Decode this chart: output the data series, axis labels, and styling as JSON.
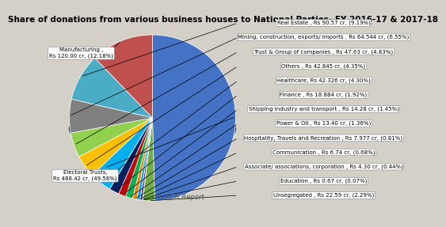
{
  "title": "Share of donations from various business houses to National Parties- FY 2016-17 & 2017-18",
  "subtitle": "-An ADR Report",
  "slices": [
    {
      "label": "Electoral Trusts,\nRs 488.42 cr, (49.58%)",
      "value": 49.58,
      "color": "#4472C4",
      "dark_color": "#2F5597"
    },
    {
      "label": "Unsegregated , Rs 22.59 cr, (2.29%)",
      "value": 2.29,
      "color": "#70AD47",
      "dark_color": "#507E33"
    },
    {
      "label": "Education , Rs 0.67 cr, (0.07%)",
      "value": 0.07,
      "color": "#FF0000",
      "dark_color": "#AA0000"
    },
    {
      "label": "Associate/ associations, corporation , Rs 4.30 cr, (0.44%)",
      "value": 0.44,
      "color": "#7030A0",
      "dark_color": "#4B2070"
    },
    {
      "label": "Communication , Rs 6.74 cr, (0.68%)",
      "value": 0.68,
      "color": "#00B0F0",
      "dark_color": "#007BA8"
    },
    {
      "label": "Hospitality, Travels and Recreation , Rs 7.977 cr, (0.81%)",
      "value": 0.81,
      "color": "#FF7F00",
      "dark_color": "#B85900"
    },
    {
      "label": "Power & Oil , Rs 13.40 cr, (1.36%)",
      "value": 1.36,
      "color": "#00B050",
      "dark_color": "#007A38"
    },
    {
      "label": "Shipping Industry and transport , Rs 14.28 cr, (1.45%)",
      "value": 1.45,
      "color": "#C00000",
      "dark_color": "#850000"
    },
    {
      "label": "Finance , Rs 18.884 cr, (1.92%)",
      "value": 1.92,
      "color": "#002060",
      "dark_color": "#001040"
    },
    {
      "label": "Healthcare, Rs 42.326 cr, (4.30%)",
      "value": 4.3,
      "color": "#00B0F0",
      "dark_color": "#007BA8"
    },
    {
      "label": "Others , Rs 42.845 cr, (4.35%)",
      "value": 4.35,
      "color": "#FFC000",
      "dark_color": "#B88A00"
    },
    {
      "label": "Trust & Group of companies , Rs 47.63 cr, (4.83%)",
      "value": 4.83,
      "color": "#92D050",
      "dark_color": "#669138"
    },
    {
      "label": "Mining, construction, exports/ imports , Rs 64.544 cr, (6.55%)",
      "value": 6.55,
      "color": "#808080",
      "dark_color": "#505050"
    },
    {
      "label": "Real Estate , Rs 90.57 cr, (9.19%)",
      "value": 9.19,
      "color": "#4BACC6",
      "dark_color": "#2E7A8C"
    },
    {
      "label": "Manufacturing ,\nRs 120.00 cr, (12.18%)",
      "value": 12.18,
      "color": "#C0504D",
      "dark_color": "#8A3A38"
    }
  ],
  "right_labels": [
    "Real Estate , Rs 90.57 cr, (9.19%)",
    "Mining, construction, exports/ imports , Rs 64.544 cr, (6.55%)",
    "Trust & Group of companies , Rs 47.63 cr, (4.83%)",
    "Others , Rs 42.845 cr, (4.35%)",
    "Healthcare, Rs 42.326 cr, (4.30%)",
    "Finance , Rs 18.884 cr, (1.92%)",
    "Shipping Industry and transport , Rs 14.28 cr, (1.45%)",
    "Power & Oil , Rs 13.40 cr, (1.36%)",
    "Hospitality, Travels and Recreation , Rs 7.977 cr, (0.81%)",
    "Communication , Rs 6.74 cr, (0.68%)",
    "Associate/ associations, corporation , Rs 4.30 cr, (0.44%)",
    "Education , Rs 0.67 cr, (0.07%)",
    "Unsegregated , Rs 22.59 cr, (2.29%)"
  ],
  "background_color": "#D4D0C8",
  "title_fontsize": 7.5,
  "label_fontsize": 5.0
}
